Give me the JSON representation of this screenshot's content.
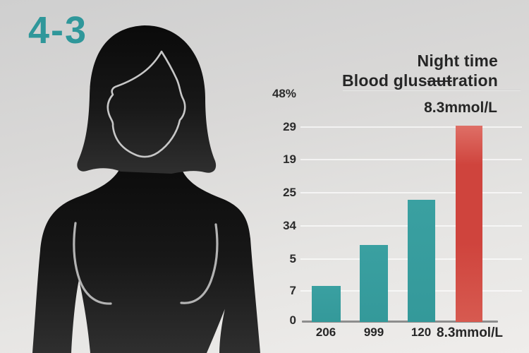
{
  "figure_label": "4-3",
  "title": {
    "line1": "Night time",
    "line2_prefix": "Blood glus",
    "line2_struck": "aut",
    "line2_suffix": "ration"
  },
  "annotation": "8.3mmol/L",
  "colors": {
    "teal": "#3aa0a1",
    "teal_dark": "#34999a",
    "red_top": "#df6f66",
    "red": "#cf443d",
    "red_bottom": "#d75a50",
    "accent_text": "#2f979a",
    "text": "#262626",
    "axis": "#8d8d8d",
    "gridline": "rgba(255,255,255,0.65)",
    "silhouette_top": "#0a0a0a",
    "silhouette_bottom": "#2f2f2f",
    "face_outline": "#c7c7c7",
    "body_curve_line": "#b3b3b3",
    "background_top": "#cfcfcf",
    "background_bottom": "#efedeb"
  },
  "chart_data": {
    "type": "bar",
    "title": "Night time Blood glusautration",
    "annotation": "8.3mmol/L",
    "categories": [
      "206",
      "999",
      "120",
      "8.3mmol/L"
    ],
    "values": [
      7.6,
      16.2,
      25.7,
      41.3
    ],
    "ylim": [
      0,
      48
    ],
    "ytick_labels_top_to_bottom": [
      "48%",
      "29",
      "19",
      "25",
      "34",
      "5",
      "7",
      "0"
    ],
    "bar_colors": [
      "teal",
      "teal",
      "teal",
      "red"
    ],
    "highlighted_category": "8.3mmol/L",
    "grid": true,
    "legend": false,
    "xlabel": "",
    "ylabel": ""
  }
}
